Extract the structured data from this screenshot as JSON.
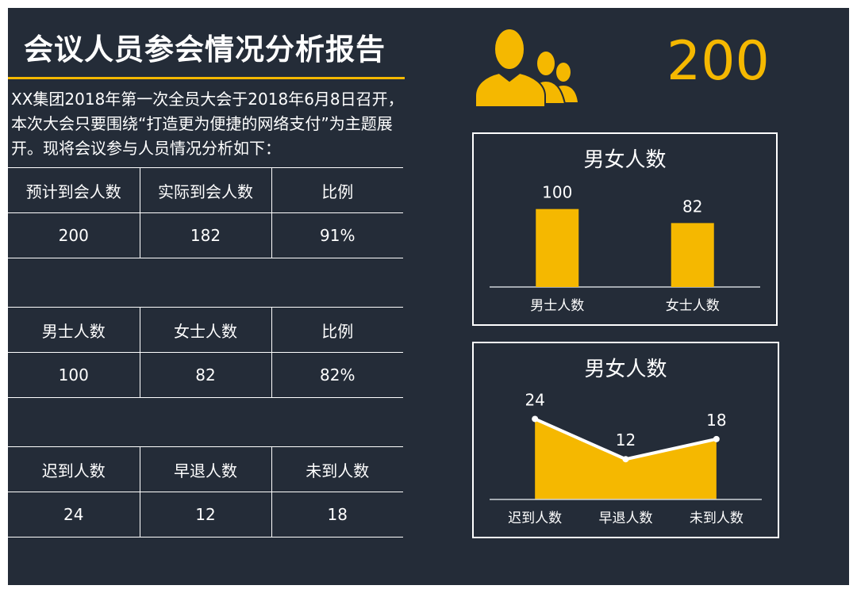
{
  "header": {
    "title": "会议人员参会情况分析报告",
    "intro": "XX集团2018年第一次全员大会于2018年6月8日召开，本次大会只要围绕“打造更为便捷的网络支付”为主题展开。现将会议参与人员情况分析如下："
  },
  "tables": [
    {
      "headers": [
        "预计到会人数",
        "实际到会人数",
        "比例"
      ],
      "values": [
        "200",
        "182",
        "91%"
      ]
    },
    {
      "headers": [
        "男士人数",
        "女士人数",
        "比例"
      ],
      "values": [
        "100",
        "82",
        "82%"
      ]
    },
    {
      "headers": [
        "迟到人数",
        "早退人数",
        "未到人数"
      ],
      "values": [
        "24",
        "12",
        "18"
      ]
    }
  ],
  "summary": {
    "icon": "people-group-icon",
    "total": "200"
  },
  "colors": {
    "background": "#242c38",
    "accent": "#f5b800",
    "text": "#ffffff"
  },
  "chart_data": [
    {
      "type": "bar",
      "title": "男女人数",
      "categories": [
        "男士人数",
        "女士人数"
      ],
      "values": [
        100,
        82
      ],
      "ylim": [
        0,
        120
      ],
      "grid": false
    },
    {
      "type": "area",
      "title": "男女人数",
      "categories": [
        "迟到人数",
        "早退人数",
        "未到人数"
      ],
      "values": [
        24,
        12,
        18
      ],
      "ylim": [
        0,
        26
      ],
      "grid": false
    }
  ]
}
